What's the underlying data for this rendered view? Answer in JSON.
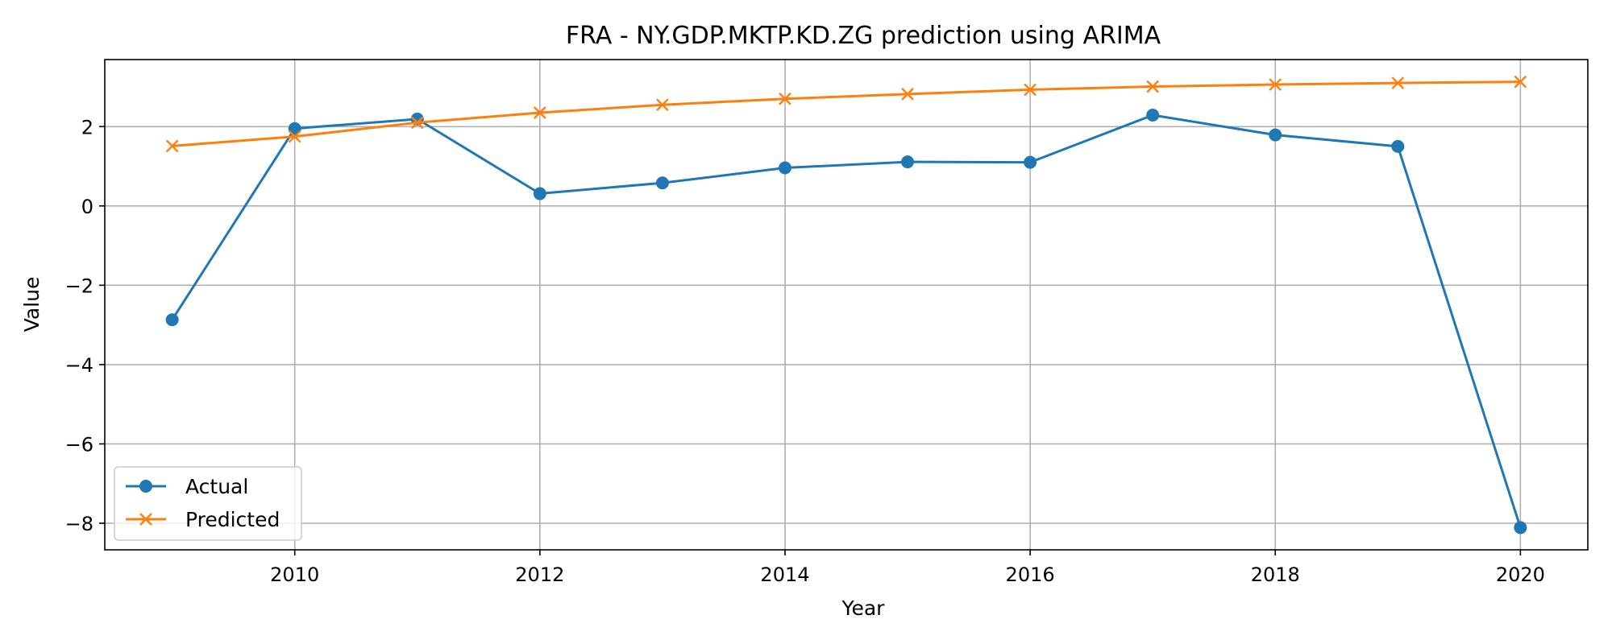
{
  "chart_data": {
    "type": "line",
    "title": "FRA - NY.GDP.MKTP.KD.ZG prediction using ARIMA",
    "xlabel": "Year",
    "ylabel": "Value",
    "x": [
      2009,
      2010,
      2011,
      2012,
      2013,
      2014,
      2015,
      2016,
      2017,
      2018,
      2019,
      2020
    ],
    "series": [
      {
        "name": "Actual",
        "color": "#1f77b4",
        "marker": "circle",
        "values": [
          -2.87,
          1.95,
          2.19,
          0.31,
          0.58,
          0.96,
          1.11,
          1.1,
          2.29,
          1.79,
          1.5,
          -8.11
        ]
      },
      {
        "name": "Predicted",
        "color": "#ff7f0e",
        "marker": "x",
        "values": [
          1.51,
          1.75,
          2.1,
          2.35,
          2.55,
          2.7,
          2.82,
          2.93,
          3.01,
          3.06,
          3.1,
          3.13
        ]
      }
    ],
    "xlim": [
      2008.45,
      2020.55
    ],
    "ylim": [
      -8.67,
      3.69
    ],
    "xticks": [
      2010,
      2012,
      2014,
      2016,
      2018,
      2020
    ],
    "xtick_labels": [
      "2010",
      "2012",
      "2014",
      "2016",
      "2018",
      "2020"
    ],
    "yticks": [
      -8,
      -6,
      -4,
      -2,
      0,
      2
    ],
    "ytick_labels": [
      "−8",
      "−6",
      "−4",
      "−2",
      "0",
      "2"
    ],
    "grid": true,
    "legend_position": "lower-left"
  }
}
